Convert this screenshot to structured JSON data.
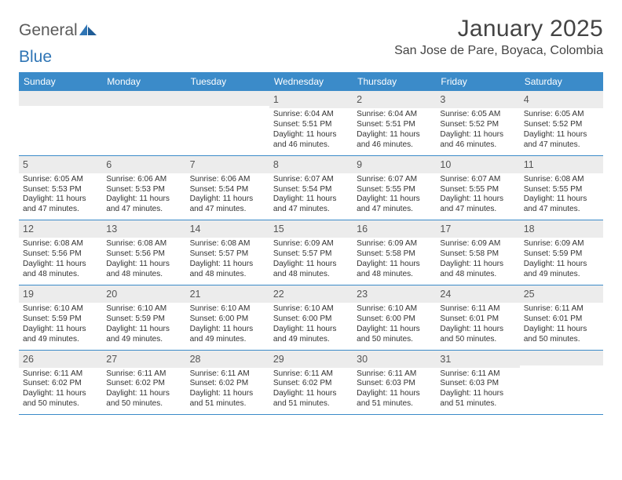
{
  "brand": {
    "name1": "General",
    "name2": "Blue"
  },
  "title": "January 2025",
  "location": "San Jose de Pare, Boyaca, Colombia",
  "colors": {
    "header_band": "#3b8bc9",
    "daynum_band": "#ececec",
    "rule": "#3b8bc9",
    "text": "#333333",
    "title_text": "#444444"
  },
  "dow": [
    "Sunday",
    "Monday",
    "Tuesday",
    "Wednesday",
    "Thursday",
    "Friday",
    "Saturday"
  ],
  "weeks": [
    [
      {
        "n": "",
        "sr": "",
        "ss": "",
        "dl": ""
      },
      {
        "n": "",
        "sr": "",
        "ss": "",
        "dl": ""
      },
      {
        "n": "",
        "sr": "",
        "ss": "",
        "dl": ""
      },
      {
        "n": "1",
        "sr": "6:04 AM",
        "ss": "5:51 PM",
        "dl": "11 hours and 46 minutes."
      },
      {
        "n": "2",
        "sr": "6:04 AM",
        "ss": "5:51 PM",
        "dl": "11 hours and 46 minutes."
      },
      {
        "n": "3",
        "sr": "6:05 AM",
        "ss": "5:52 PM",
        "dl": "11 hours and 46 minutes."
      },
      {
        "n": "4",
        "sr": "6:05 AM",
        "ss": "5:52 PM",
        "dl": "11 hours and 47 minutes."
      }
    ],
    [
      {
        "n": "5",
        "sr": "6:05 AM",
        "ss": "5:53 PM",
        "dl": "11 hours and 47 minutes."
      },
      {
        "n": "6",
        "sr": "6:06 AM",
        "ss": "5:53 PM",
        "dl": "11 hours and 47 minutes."
      },
      {
        "n": "7",
        "sr": "6:06 AM",
        "ss": "5:54 PM",
        "dl": "11 hours and 47 minutes."
      },
      {
        "n": "8",
        "sr": "6:07 AM",
        "ss": "5:54 PM",
        "dl": "11 hours and 47 minutes."
      },
      {
        "n": "9",
        "sr": "6:07 AM",
        "ss": "5:55 PM",
        "dl": "11 hours and 47 minutes."
      },
      {
        "n": "10",
        "sr": "6:07 AM",
        "ss": "5:55 PM",
        "dl": "11 hours and 47 minutes."
      },
      {
        "n": "11",
        "sr": "6:08 AM",
        "ss": "5:55 PM",
        "dl": "11 hours and 47 minutes."
      }
    ],
    [
      {
        "n": "12",
        "sr": "6:08 AM",
        "ss": "5:56 PM",
        "dl": "11 hours and 48 minutes."
      },
      {
        "n": "13",
        "sr": "6:08 AM",
        "ss": "5:56 PM",
        "dl": "11 hours and 48 minutes."
      },
      {
        "n": "14",
        "sr": "6:08 AM",
        "ss": "5:57 PM",
        "dl": "11 hours and 48 minutes."
      },
      {
        "n": "15",
        "sr": "6:09 AM",
        "ss": "5:57 PM",
        "dl": "11 hours and 48 minutes."
      },
      {
        "n": "16",
        "sr": "6:09 AM",
        "ss": "5:58 PM",
        "dl": "11 hours and 48 minutes."
      },
      {
        "n": "17",
        "sr": "6:09 AM",
        "ss": "5:58 PM",
        "dl": "11 hours and 48 minutes."
      },
      {
        "n": "18",
        "sr": "6:09 AM",
        "ss": "5:59 PM",
        "dl": "11 hours and 49 minutes."
      }
    ],
    [
      {
        "n": "19",
        "sr": "6:10 AM",
        "ss": "5:59 PM",
        "dl": "11 hours and 49 minutes."
      },
      {
        "n": "20",
        "sr": "6:10 AM",
        "ss": "5:59 PM",
        "dl": "11 hours and 49 minutes."
      },
      {
        "n": "21",
        "sr": "6:10 AM",
        "ss": "6:00 PM",
        "dl": "11 hours and 49 minutes."
      },
      {
        "n": "22",
        "sr": "6:10 AM",
        "ss": "6:00 PM",
        "dl": "11 hours and 49 minutes."
      },
      {
        "n": "23",
        "sr": "6:10 AM",
        "ss": "6:00 PM",
        "dl": "11 hours and 50 minutes."
      },
      {
        "n": "24",
        "sr": "6:11 AM",
        "ss": "6:01 PM",
        "dl": "11 hours and 50 minutes."
      },
      {
        "n": "25",
        "sr": "6:11 AM",
        "ss": "6:01 PM",
        "dl": "11 hours and 50 minutes."
      }
    ],
    [
      {
        "n": "26",
        "sr": "6:11 AM",
        "ss": "6:02 PM",
        "dl": "11 hours and 50 minutes."
      },
      {
        "n": "27",
        "sr": "6:11 AM",
        "ss": "6:02 PM",
        "dl": "11 hours and 50 minutes."
      },
      {
        "n": "28",
        "sr": "6:11 AM",
        "ss": "6:02 PM",
        "dl": "11 hours and 51 minutes."
      },
      {
        "n": "29",
        "sr": "6:11 AM",
        "ss": "6:02 PM",
        "dl": "11 hours and 51 minutes."
      },
      {
        "n": "30",
        "sr": "6:11 AM",
        "ss": "6:03 PM",
        "dl": "11 hours and 51 minutes."
      },
      {
        "n": "31",
        "sr": "6:11 AM",
        "ss": "6:03 PM",
        "dl": "11 hours and 51 minutes."
      },
      {
        "n": "",
        "sr": "",
        "ss": "",
        "dl": ""
      }
    ]
  ],
  "labels": {
    "sunrise": "Sunrise:",
    "sunset": "Sunset:",
    "daylight": "Daylight:"
  }
}
